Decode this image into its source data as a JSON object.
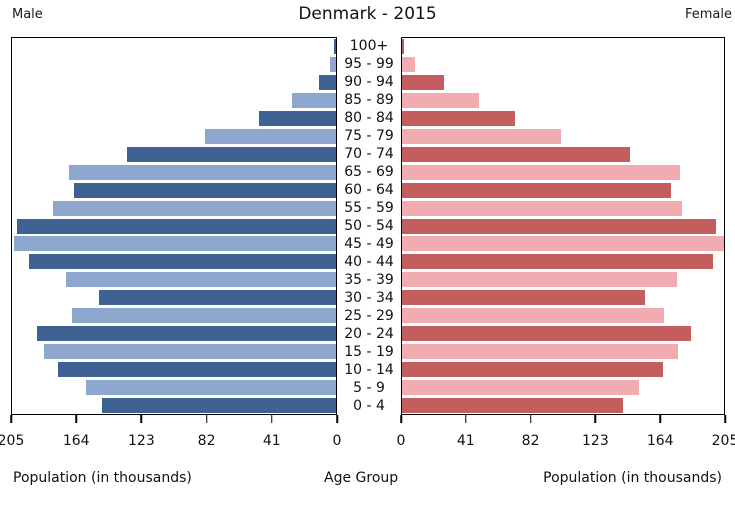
{
  "title": "Denmark - 2015",
  "header": {
    "male_label": "Male",
    "female_label": "Female"
  },
  "axis_labels": {
    "left": "Population (in thousands)",
    "center": "Age Group",
    "right": "Population (in thousands)"
  },
  "colors": {
    "male_dark": "#3E6292",
    "male_light": "#8DA7CE",
    "female_dark": "#C35D5E",
    "female_light": "#F1ACB1",
    "axis": "#000000",
    "text": "#1a1a1a"
  },
  "chart_data": {
    "type": "bar",
    "subtype": "population-pyramid",
    "title": "Denmark - 2015",
    "xlabel": "Population (in thousands)",
    "center_label": "Age Group",
    "xlim": [
      0,
      205
    ],
    "grid": false,
    "legend_position": "none",
    "units": "thousands",
    "categories": [
      "100+",
      "95 - 99",
      "90 - 94",
      "85 - 89",
      "80 - 84",
      "75 - 79",
      "70 - 74",
      "65 - 69",
      "60 - 64",
      "55 - 59",
      "50 - 54",
      "45 - 49",
      "40 - 44",
      "35 - 39",
      "30 - 34",
      "25 - 29",
      "20 - 24",
      "15 - 19",
      "10 - 14",
      "5 - 9",
      "0 - 4"
    ],
    "series": [
      {
        "name": "Male",
        "values": [
          1.5,
          4,
          11,
          28,
          49,
          83,
          132,
          169,
          166,
          179,
          202,
          204,
          194,
          171,
          150,
          167,
          189,
          185,
          176,
          158,
          148
        ]
      },
      {
        "name": "Female",
        "values": [
          1.5,
          8,
          27,
          49,
          72,
          101,
          145,
          177,
          171,
          178,
          200,
          205,
          198,
          175,
          155,
          167,
          184,
          176,
          166,
          151,
          141
        ]
      }
    ],
    "male_tick_labels": [
      "205",
      "164",
      "123",
      "82",
      "41",
      "0"
    ],
    "female_tick_labels": [
      "0",
      "41",
      "82",
      "123",
      "164",
      "205"
    ]
  }
}
